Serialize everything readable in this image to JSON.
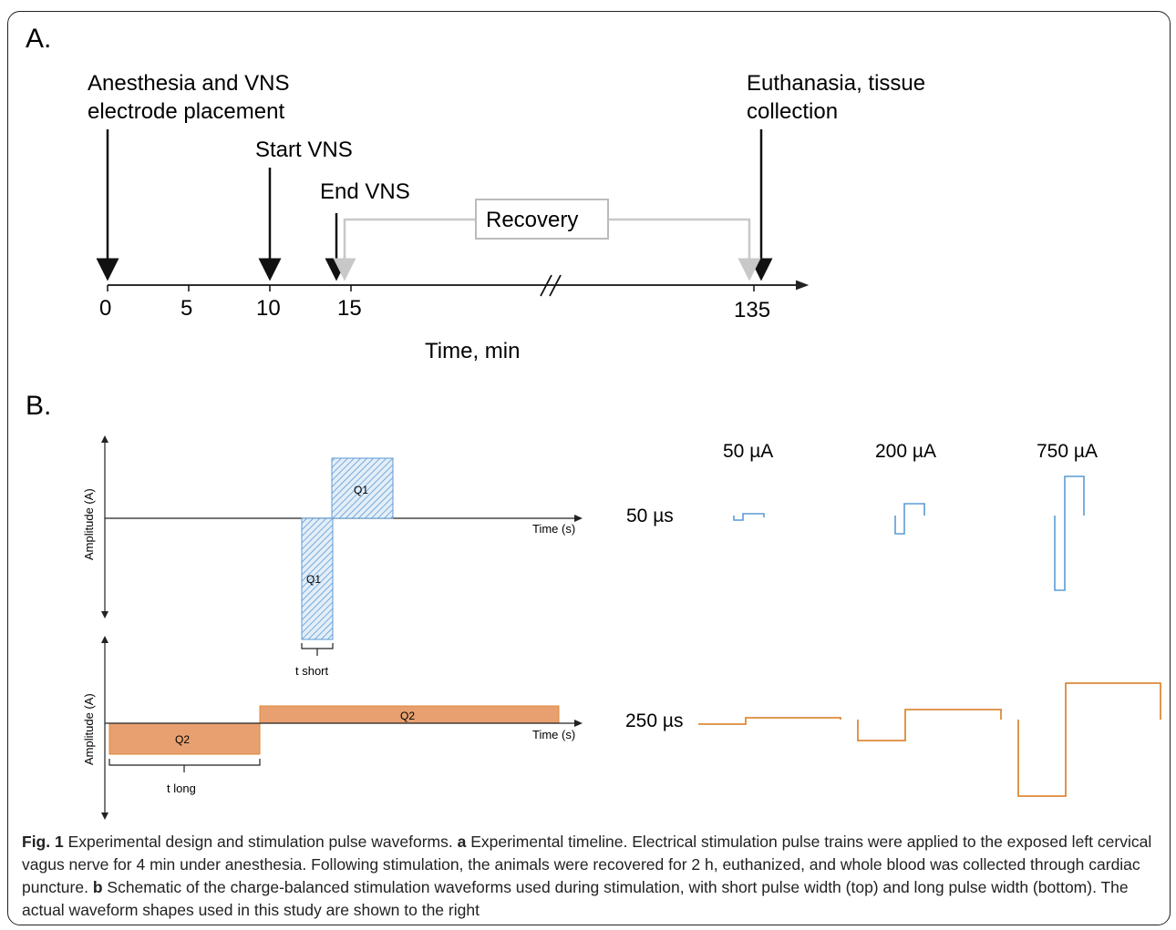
{
  "panel_a": {
    "label": "A.",
    "events": [
      {
        "line1": "Anesthesia and VNS",
        "line2": "electrode placement"
      },
      {
        "line1": "Start VNS"
      },
      {
        "line1": "End VNS"
      },
      {
        "line1": "Euthanasia, tissue",
        "line2": "collection"
      }
    ],
    "recovery_label": "Recovery",
    "ticks": [
      "0",
      "5",
      "10",
      "15",
      "135"
    ],
    "axis_title": "Time, min"
  },
  "panel_b": {
    "label": "B.",
    "top_schematic": {
      "ylabel": "Amplitude (A)",
      "xlabel": "Time (s)",
      "pos_phase": "Q1",
      "neg_phase": "Q1",
      "width_label": "t short"
    },
    "bottom_schematic": {
      "ylabel": "Amplitude (A)",
      "xlabel": "Time (s)",
      "pos_phase": "Q2",
      "neg_phase": "Q2",
      "width_label": "t long"
    },
    "amplitude_headers": [
      "50 µA",
      "200 µA",
      "750 µA"
    ],
    "pulse_width_labels": [
      "50 µs",
      "250 µs"
    ],
    "colors": {
      "short_pulse": "#5b9bd5",
      "long_pulse": "#e8a070",
      "long_pulse_line": "#dd8a3a",
      "hatch": "#5b9bd5"
    }
  },
  "caption": {
    "fig_label": "Fig. 1",
    "title": " Experimental design and stimulation pulse waveforms. ",
    "a_label": "a",
    "a_text": " Experimental timeline. Electrical stimulation pulse trains were applied to the exposed left cervical vagus nerve for 4 min under anesthesia. Following stimulation, the animals were recovered for 2 h, euthanized, and whole blood was collected through cardiac puncture. ",
    "b_label": "b",
    "b_text": " Schematic of the charge-balanced stimulation waveforms used during stimulation, with short pulse width (top) and long pulse width (bottom). The actual waveform shapes used in this study are shown to the right"
  }
}
